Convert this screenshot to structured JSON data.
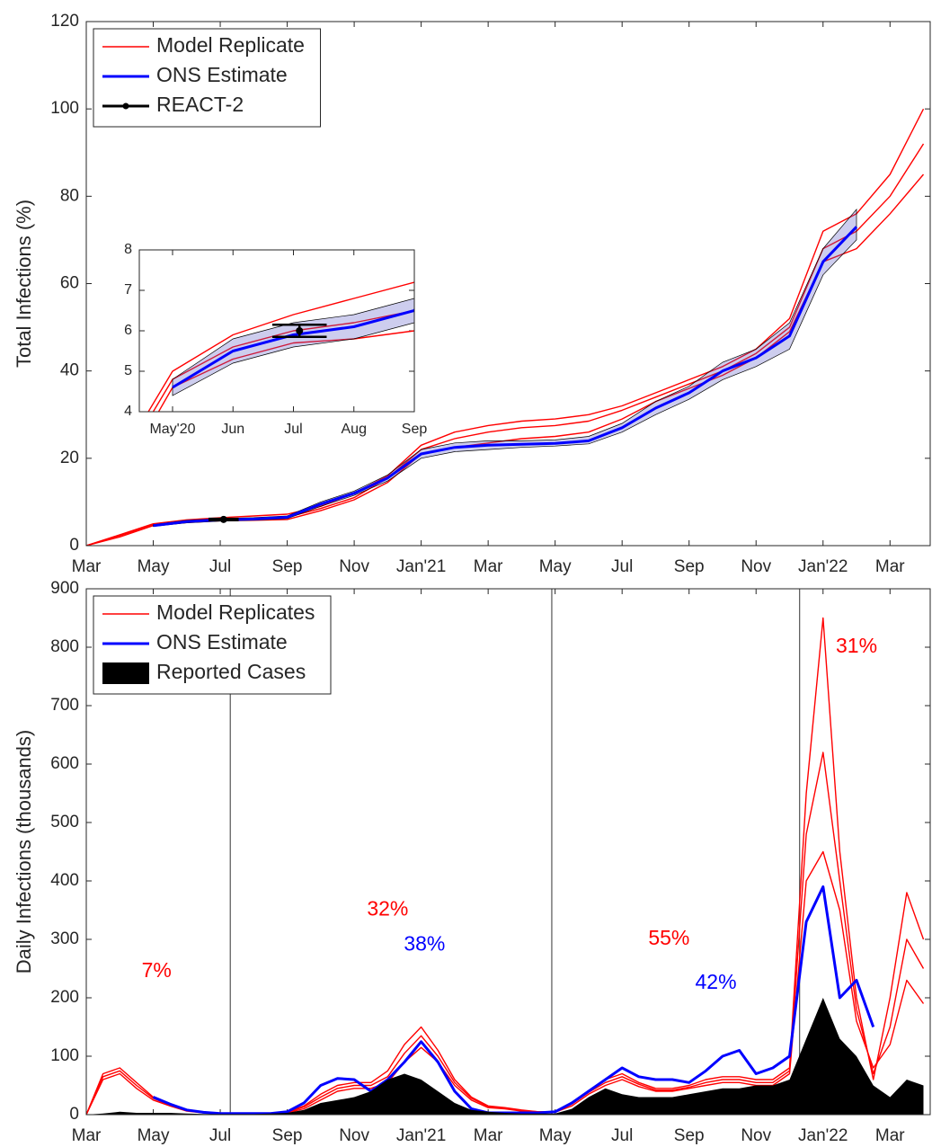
{
  "chart_data": [
    {
      "type": "line",
      "ylabel": "Total Infections (%)",
      "x": [
        0,
        1,
        2,
        3,
        4,
        5,
        6,
        7,
        8,
        9,
        10,
        11,
        12,
        13,
        14,
        15,
        16,
        17,
        18,
        19,
        20,
        21,
        22,
        23,
        24,
        25
      ],
      "xlim": [
        0,
        25.2
      ],
      "xticks": [
        {
          "value": 0,
          "label": "Mar"
        },
        {
          "value": 2,
          "label": "May"
        },
        {
          "value": 4,
          "label": "Jul"
        },
        {
          "value": 6,
          "label": "Sep"
        },
        {
          "value": 8,
          "label": "Nov"
        },
        {
          "value": 10,
          "label": "Jan'21"
        },
        {
          "value": 12,
          "label": "Mar"
        },
        {
          "value": 14,
          "label": "May"
        },
        {
          "value": 16,
          "label": "Jul"
        },
        {
          "value": 18,
          "label": "Sep"
        },
        {
          "value": 20,
          "label": "Nov"
        },
        {
          "value": 22,
          "label": "Jan'22"
        },
        {
          "value": 24,
          "label": "Mar"
        }
      ],
      "ylim": [
        0,
        120
      ],
      "yticks": [
        0,
        20,
        40,
        60,
        80,
        100,
        120
      ],
      "legend": "upper left",
      "series": [
        {
          "name": "Model Replicate",
          "color": "#ff0000",
          "style": "line",
          "replicates": [
            [
              0,
              2.5,
              5,
              5.9,
              6.4,
              6.8,
              7.2,
              9,
              12,
              16,
              23,
              26,
              27.5,
              28.5,
              29,
              30,
              32,
              35,
              38,
              41,
              45,
              52,
              72,
              76,
              85,
              100
            ],
            [
              0,
              2.3,
              4.8,
              5.6,
              6,
              6.2,
              6.5,
              8.5,
              11,
              15.5,
              22,
              24.5,
              26,
              27,
              27.5,
              28.5,
              31,
              34,
              37,
              40,
              44,
              50,
              68,
              72,
              80,
              92
            ],
            [
              0,
              2,
              4.6,
              5.3,
              5.7,
              5.8,
              6,
              8,
              10.5,
              14.5,
              21,
              22.5,
              23.5,
              24.5,
              25,
              26,
              29,
              33,
              36,
              39,
              43,
              49,
              65,
              68,
              76,
              85
            ]
          ]
        },
        {
          "name": "ONS Estimate",
          "color": "#0000ff",
          "style": "line",
          "values": [
            null,
            null,
            4.6,
            5.5,
            5.9,
            6.1,
            6.5,
            9.5,
            12,
            15.5,
            21,
            22.5,
            23,
            23.2,
            23.4,
            24,
            27,
            31.5,
            35,
            40,
            43,
            48,
            65,
            73,
            null,
            null
          ],
          "lower": [
            null,
            null,
            4.4,
            5.2,
            5.6,
            5.8,
            6.2,
            9,
            11.5,
            14.8,
            20,
            21.5,
            22,
            22.5,
            22.8,
            23.3,
            26,
            30,
            33.5,
            38,
            41,
            45,
            62,
            70,
            null,
            null
          ],
          "upper": [
            null,
            null,
            4.8,
            5.8,
            6.2,
            6.4,
            6.8,
            10,
            12.5,
            16.2,
            22,
            23.5,
            24,
            24,
            24.2,
            25,
            28,
            33,
            36.5,
            42,
            45,
            51,
            68,
            77,
            null,
            null
          ]
        },
        {
          "name": "REACT-2",
          "color": "#000000",
          "style": "errorbar",
          "x": [
            4.1
          ],
          "values": [
            6.0
          ],
          "errors": [
            0.15
          ]
        }
      ],
      "inset": {
        "xlim": [
          1.45,
          6
        ],
        "ylim": [
          4,
          8
        ],
        "xticks": [
          {
            "value": 2,
            "label": "May'20"
          },
          {
            "value": 3,
            "label": "Jun"
          },
          {
            "value": 4,
            "label": "Jul"
          },
          {
            "value": 5,
            "label": "Aug"
          },
          {
            "value": 6,
            "label": "Sep"
          }
        ],
        "yticks": [
          4,
          5,
          6,
          7,
          8
        ]
      }
    },
    {
      "type": "line",
      "ylabel": "Daily Infections (thousands)",
      "x": [
        0,
        0.5,
        1,
        1.5,
        2,
        2.5,
        3,
        3.5,
        4,
        4.5,
        5,
        5.5,
        6,
        6.5,
        7,
        7.5,
        8,
        8.5,
        9,
        9.5,
        10,
        10.5,
        11,
        11.5,
        12,
        12.5,
        13,
        13.5,
        14,
        14.5,
        15,
        15.5,
        16,
        16.5,
        17,
        17.5,
        18,
        18.5,
        19,
        19.5,
        20,
        20.5,
        21,
        21.5,
        22,
        22.5,
        23,
        23.5,
        24,
        24.5,
        25
      ],
      "xlim": [
        0,
        25.2
      ],
      "xticks": [
        {
          "value": 0,
          "label": "Mar"
        },
        {
          "value": 2,
          "label": "May"
        },
        {
          "value": 4,
          "label": "Jul"
        },
        {
          "value": 6,
          "label": "Sep"
        },
        {
          "value": 8,
          "label": "Nov"
        },
        {
          "value": 10,
          "label": "Jan'21"
        },
        {
          "value": 12,
          "label": "Mar"
        },
        {
          "value": 14,
          "label": "May"
        },
        {
          "value": 16,
          "label": "Jul"
        },
        {
          "value": 18,
          "label": "Sep"
        },
        {
          "value": 20,
          "label": "Nov"
        },
        {
          "value": 22,
          "label": "Jan'22"
        },
        {
          "value": 24,
          "label": "Mar"
        }
      ],
      "ylim": [
        0,
        900
      ],
      "yticks": [
        0,
        100,
        200,
        300,
        400,
        500,
        600,
        700,
        800,
        900
      ],
      "legend": "upper left",
      "vlines": [
        4.3,
        13.9,
        21.3
      ],
      "series": [
        {
          "name": "Model Replicates",
          "color": "#ff0000",
          "style": "line",
          "replicates": [
            [
              0,
              70,
              80,
              55,
              30,
              18,
              8,
              4,
              2,
              2,
              2,
              2,
              4,
              15,
              35,
              50,
              55,
              55,
              75,
              120,
              150,
              110,
              60,
              30,
              15,
              12,
              8,
              5,
              5,
              20,
              40,
              60,
              70,
              55,
              45,
              45,
              50,
              60,
              65,
              65,
              60,
              60,
              80,
              550,
              850,
              450,
              200,
              60,
              200,
              380,
              300
            ],
            [
              0,
              65,
              75,
              50,
              28,
              16,
              7,
              4,
              2,
              2,
              2,
              2,
              4,
              13,
              30,
              45,
              50,
              50,
              65,
              105,
              135,
              100,
              55,
              28,
              14,
              11,
              7,
              5,
              5,
              18,
              38,
              55,
              65,
              52,
              42,
              42,
              47,
              55,
              60,
              60,
              55,
              55,
              75,
              480,
              620,
              400,
              180,
              70,
              150,
              300,
              250
            ],
            [
              0,
              60,
              70,
              45,
              25,
              15,
              6,
              3,
              2,
              2,
              2,
              2,
              3,
              10,
              25,
              40,
              45,
              45,
              55,
              90,
              115,
              90,
              50,
              25,
              12,
              10,
              6,
              4,
              4,
              15,
              35,
              50,
              60,
              48,
              40,
              40,
              45,
              50,
              55,
              55,
              50,
              50,
              70,
              400,
              450,
              350,
              160,
              80,
              120,
              230,
              190
            ]
          ]
        },
        {
          "name": "ONS Estimate",
          "color": "#0000ff",
          "style": "line",
          "values": [
            null,
            null,
            null,
            null,
            30,
            18,
            8,
            4,
            2,
            2,
            2,
            2,
            5,
            20,
            50,
            62,
            60,
            40,
            60,
            90,
            125,
            90,
            40,
            10,
            3,
            3,
            3,
            3,
            5,
            20,
            40,
            60,
            80,
            65,
            60,
            60,
            55,
            75,
            100,
            110,
            70,
            80,
            100,
            330,
            390,
            200,
            230,
            150,
            null,
            null,
            null
          ]
        },
        {
          "name": "Reported Cases",
          "color": "#000000",
          "style": "area",
          "values": [
            0,
            2,
            5,
            3,
            3,
            3,
            2,
            1,
            1,
            1,
            1,
            2,
            3,
            8,
            20,
            25,
            30,
            40,
            60,
            70,
            60,
            40,
            20,
            8,
            5,
            3,
            2,
            2,
            2,
            10,
            30,
            45,
            35,
            30,
            30,
            30,
            35,
            40,
            45,
            45,
            50,
            50,
            60,
            130,
            200,
            130,
            100,
            50,
            30,
            60,
            50
          ]
        }
      ],
      "annotations": [
        {
          "text": "7%",
          "x": 2.1,
          "y": 245,
          "color": "#ff0000"
        },
        {
          "text": "32%",
          "x": 9.0,
          "y": 350,
          "color": "#ff0000"
        },
        {
          "text": "38%",
          "x": 10.1,
          "y": 290,
          "color": "#0000ff"
        },
        {
          "text": "55%",
          "x": 17.4,
          "y": 300,
          "color": "#ff0000"
        },
        {
          "text": "42%",
          "x": 18.8,
          "y": 225,
          "color": "#0000ff"
        },
        {
          "text": "31%",
          "x": 23.0,
          "y": 800,
          "color": "#ff0000"
        }
      ]
    }
  ]
}
